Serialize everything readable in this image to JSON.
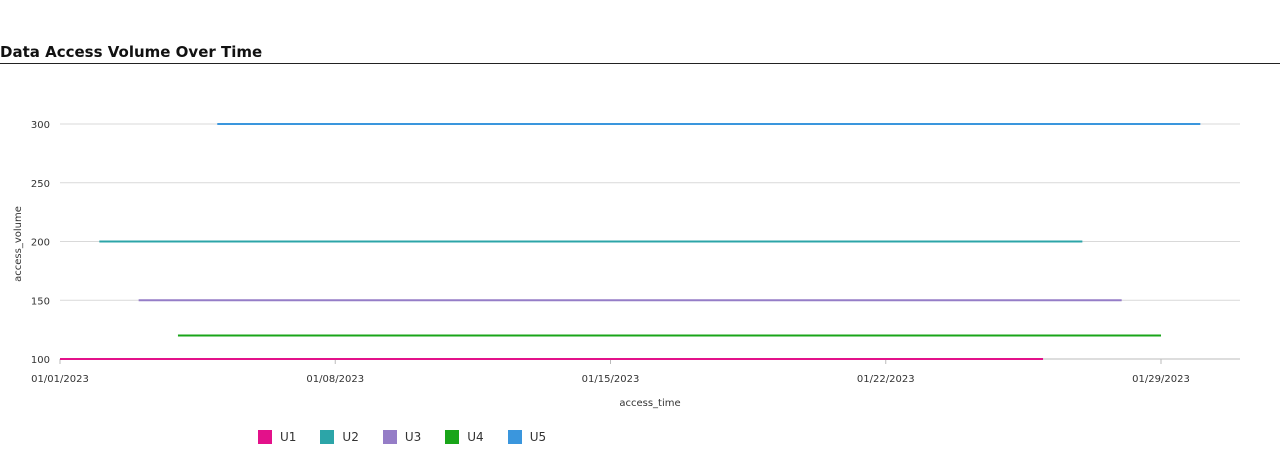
{
  "chart_data": {
    "type": "line",
    "title": "Data Access Volume Over Time",
    "xlabel": "access_time",
    "ylabel": "access_volume",
    "x_ticks": [
      "01/01/2023",
      "01/08/2023",
      "01/15/2023",
      "01/22/2023",
      "01/29/2023"
    ],
    "y_ticks": [
      100,
      150,
      200,
      250,
      300
    ],
    "xlim": [
      "2023-01-01",
      "2023-01-31"
    ],
    "ylim": [
      100,
      300
    ],
    "grid": true,
    "legend_position": "bottom-left",
    "series": [
      {
        "name": "U1",
        "color": "#e3118a",
        "x": [
          "2023-01-01",
          "2023-01-26"
        ],
        "y": [
          100,
          100
        ]
      },
      {
        "name": "U2",
        "color": "#2ca5a8",
        "x": [
          "2023-01-02",
          "2023-01-27"
        ],
        "y": [
          200,
          200
        ]
      },
      {
        "name": "U3",
        "color": "#957dc7",
        "x": [
          "2023-01-03",
          "2023-01-28"
        ],
        "y": [
          150,
          150
        ]
      },
      {
        "name": "U4",
        "color": "#19a519",
        "x": [
          "2023-01-04",
          "2023-01-29"
        ],
        "y": [
          120,
          120
        ]
      },
      {
        "name": "U5",
        "color": "#3a96dd",
        "x": [
          "2023-01-05",
          "2023-01-30"
        ],
        "y": [
          300,
          300
        ]
      }
    ]
  }
}
